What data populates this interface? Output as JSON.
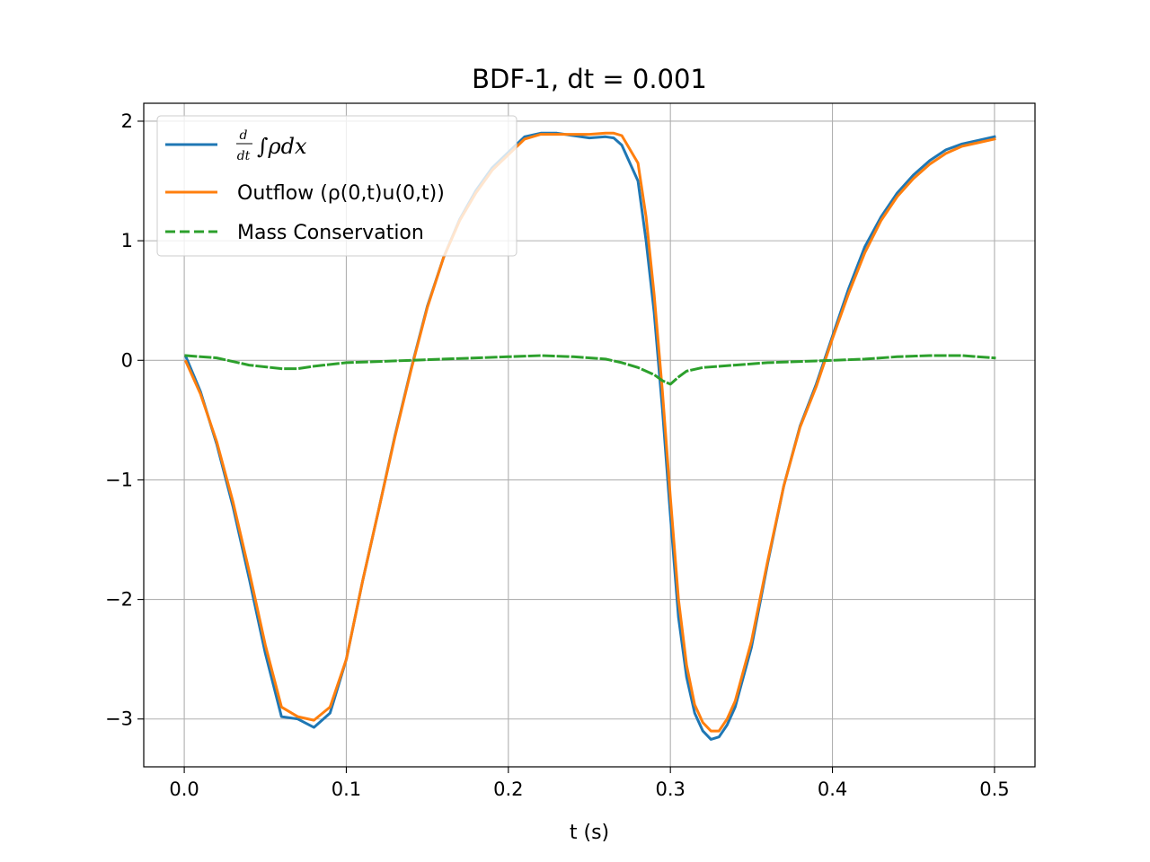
{
  "chart_data": {
    "type": "line",
    "title": "BDF-1, dt = 0.001",
    "xlabel": "t (s)",
    "ylabel": "",
    "xlim": [
      -0.025,
      0.525
    ],
    "ylim": [
      -3.4,
      2.15
    ],
    "xticks": [
      0.0,
      0.1,
      0.2,
      0.3,
      0.4,
      0.5
    ],
    "xtick_labels": [
      "0.0",
      "0.1",
      "0.2",
      "0.3",
      "0.4",
      "0.5"
    ],
    "yticks": [
      -3,
      -2,
      -1,
      0,
      1,
      2
    ],
    "ytick_labels": [
      "−3",
      "−2",
      "−1",
      "0",
      "1",
      "2"
    ],
    "grid": true,
    "legend_position": "top-left",
    "series": [
      {
        "name": "d/dt ∫ρdx",
        "color": "#1f77b4",
        "style": "solid",
        "x": [
          0.001,
          0.01,
          0.02,
          0.03,
          0.04,
          0.05,
          0.06,
          0.07,
          0.08,
          0.09,
          0.1,
          0.11,
          0.12,
          0.13,
          0.14,
          0.15,
          0.16,
          0.17,
          0.18,
          0.19,
          0.2,
          0.21,
          0.22,
          0.23,
          0.24,
          0.25,
          0.26,
          0.265,
          0.27,
          0.28,
          0.285,
          0.29,
          0.295,
          0.3,
          0.305,
          0.31,
          0.315,
          0.32,
          0.325,
          0.33,
          0.335,
          0.34,
          0.35,
          0.36,
          0.37,
          0.38,
          0.39,
          0.4,
          0.41,
          0.42,
          0.43,
          0.44,
          0.45,
          0.46,
          0.47,
          0.48,
          0.49,
          0.5
        ],
        "y": [
          0.03,
          -0.26,
          -0.7,
          -1.22,
          -1.82,
          -2.45,
          -2.98,
          -3.0,
          -3.07,
          -2.95,
          -2.5,
          -1.85,
          -1.25,
          -0.63,
          -0.07,
          0.45,
          0.86,
          1.18,
          1.42,
          1.61,
          1.74,
          1.87,
          1.9,
          1.9,
          1.88,
          1.86,
          1.87,
          1.86,
          1.8,
          1.5,
          1.0,
          0.4,
          -0.4,
          -1.3,
          -2.15,
          -2.65,
          -2.95,
          -3.1,
          -3.17,
          -3.15,
          -3.05,
          -2.9,
          -2.4,
          -1.7,
          -1.05,
          -0.55,
          -0.2,
          0.2,
          0.6,
          0.95,
          1.2,
          1.4,
          1.55,
          1.67,
          1.76,
          1.81,
          1.84,
          1.87
        ]
      },
      {
        "name": "Outflow (ρ(0,t)u(0,t))",
        "color": "#ff7f0e",
        "style": "solid",
        "x": [
          0.001,
          0.01,
          0.02,
          0.03,
          0.04,
          0.05,
          0.06,
          0.07,
          0.08,
          0.09,
          0.1,
          0.11,
          0.12,
          0.13,
          0.14,
          0.15,
          0.16,
          0.17,
          0.18,
          0.19,
          0.2,
          0.21,
          0.22,
          0.23,
          0.24,
          0.25,
          0.26,
          0.265,
          0.27,
          0.28,
          0.285,
          0.29,
          0.295,
          0.3,
          0.305,
          0.31,
          0.315,
          0.32,
          0.325,
          0.33,
          0.335,
          0.34,
          0.35,
          0.36,
          0.37,
          0.38,
          0.39,
          0.4,
          0.41,
          0.42,
          0.43,
          0.44,
          0.45,
          0.46,
          0.47,
          0.48,
          0.49,
          0.5
        ],
        "y": [
          -0.01,
          -0.28,
          -0.68,
          -1.18,
          -1.76,
          -2.38,
          -2.9,
          -2.98,
          -3.01,
          -2.9,
          -2.5,
          -1.85,
          -1.25,
          -0.64,
          -0.08,
          0.44,
          0.86,
          1.17,
          1.4,
          1.59,
          1.72,
          1.85,
          1.89,
          1.89,
          1.89,
          1.89,
          1.9,
          1.9,
          1.88,
          1.65,
          1.2,
          0.55,
          -0.25,
          -1.15,
          -2.0,
          -2.55,
          -2.88,
          -3.03,
          -3.1,
          -3.1,
          -3.0,
          -2.85,
          -2.35,
          -1.68,
          -1.05,
          -0.56,
          -0.22,
          0.18,
          0.56,
          0.9,
          1.17,
          1.37,
          1.52,
          1.64,
          1.73,
          1.79,
          1.82,
          1.85
        ]
      },
      {
        "name": "Mass Conservation",
        "color": "#2ca02c",
        "style": "dashed",
        "x": [
          0.001,
          0.02,
          0.04,
          0.06,
          0.07,
          0.08,
          0.1,
          0.12,
          0.14,
          0.16,
          0.18,
          0.2,
          0.22,
          0.24,
          0.26,
          0.27,
          0.28,
          0.29,
          0.295,
          0.3,
          0.305,
          0.31,
          0.32,
          0.34,
          0.36,
          0.38,
          0.4,
          0.42,
          0.44,
          0.46,
          0.48,
          0.5
        ],
        "y": [
          0.04,
          0.02,
          -0.04,
          -0.07,
          -0.07,
          -0.05,
          -0.02,
          -0.01,
          0.0,
          0.01,
          0.02,
          0.03,
          0.04,
          0.03,
          0.01,
          -0.02,
          -0.06,
          -0.12,
          -0.17,
          -0.2,
          -0.14,
          -0.09,
          -0.06,
          -0.04,
          -0.02,
          -0.01,
          0.0,
          0.01,
          0.03,
          0.04,
          0.04,
          0.02
        ]
      }
    ]
  }
}
